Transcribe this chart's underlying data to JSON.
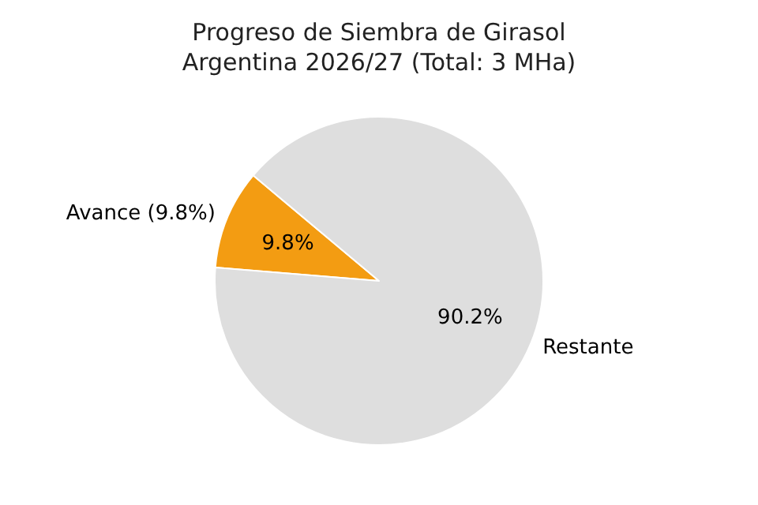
{
  "chart_data": {
    "type": "pie",
    "title": "Progreso de Siembra de Girasol",
    "subtitle": "Argentina 2026/27 (Total: 3 MHa)",
    "categories": [
      "Avance (9.8%)",
      "Restante"
    ],
    "values": [
      9.8,
      90.2
    ],
    "colors": [
      "#f39c12",
      "#dedede"
    ],
    "value_labels": [
      "9.8%",
      "90.2%"
    ],
    "legend": false
  }
}
